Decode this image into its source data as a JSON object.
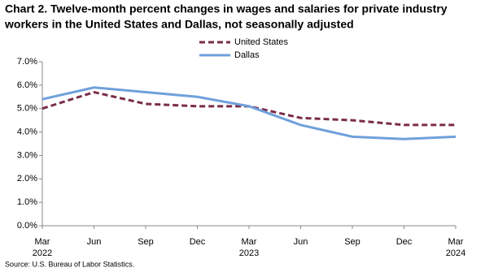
{
  "chart_data": {
    "type": "line",
    "title": [
      "Chart 2. Twelve-month percent changes in wages and salaries for private industry",
      "workers in the United States and Dallas, not seasonally adjusted"
    ],
    "categories": [
      "Mar 2022",
      "Jun",
      "Sep",
      "Dec",
      "Mar 2023",
      "Jun",
      "Sep",
      "Dec",
      "Mar 2024"
    ],
    "series": [
      {
        "name": "United States",
        "color": "#7b2c4a",
        "dashed": true,
        "values": [
          5.0,
          5.7,
          5.2,
          5.1,
          5.1,
          4.6,
          4.5,
          4.3,
          4.3
        ]
      },
      {
        "name": "Dallas",
        "color": "#6fa0db",
        "dashed": false,
        "values": [
          5.4,
          5.9,
          5.7,
          5.5,
          5.1,
          4.3,
          3.8,
          3.7,
          3.8
        ]
      }
    ],
    "ylim": [
      0,
      7
    ],
    "yticks": [
      {
        "value": 0,
        "label": "0.0%"
      },
      {
        "value": 1,
        "label": "1.0%"
      },
      {
        "value": 2,
        "label": "2.0%"
      },
      {
        "value": 3,
        "label": "3.0%"
      },
      {
        "value": 4,
        "label": "4.0%"
      },
      {
        "value": 5,
        "label": "5.0%"
      },
      {
        "value": 6,
        "label": "6.0%"
      },
      {
        "value": 7,
        "label": "7.0%"
      }
    ],
    "grid": false,
    "source": "Source: U.S. Bureau of Labor Statistics."
  }
}
